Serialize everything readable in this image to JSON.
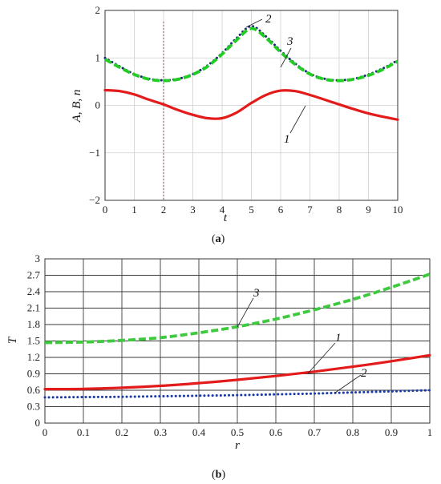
{
  "chart_data": [
    {
      "panel_label": "a",
      "type": "line",
      "xlabel": "t",
      "ylabel": "A, B, n",
      "xlim": [
        0,
        10
      ],
      "ylim": [
        -2,
        2
      ],
      "xticks": [
        "0",
        "1",
        "2",
        "3",
        "4",
        "5",
        "6",
        "7",
        "8",
        "9",
        "10"
      ],
      "yticks": [
        "2",
        "1",
        "0",
        "−1",
        "−2"
      ],
      "grid": true,
      "marker_line_x": 2,
      "series": [
        {
          "name": "1",
          "color": "#e31b1b",
          "style": "solid",
          "x": [
            0,
            0.5,
            1,
            1.5,
            2,
            2.5,
            3,
            3.5,
            4,
            4.5,
            5,
            5.5,
            6,
            6.5,
            7,
            7.5,
            8,
            8.5,
            9,
            9.5,
            10
          ],
          "y": [
            0.32,
            0.3,
            0.23,
            0.12,
            0.02,
            -0.1,
            -0.2,
            -0.27,
            -0.27,
            -0.15,
            0.05,
            0.22,
            0.31,
            0.3,
            0.22,
            0.12,
            0.02,
            -0.08,
            -0.17,
            -0.24,
            -0.3
          ]
        },
        {
          "name": "2",
          "color": "#1a237e",
          "style": "dotted",
          "x": [
            0,
            0.5,
            1,
            1.5,
            2,
            2.5,
            3,
            3.5,
            4,
            4.5,
            5,
            5.5,
            6,
            6.5,
            7,
            7.5,
            8,
            8.5,
            9,
            9.5,
            10
          ],
          "y": [
            1.0,
            0.82,
            0.66,
            0.56,
            0.53,
            0.56,
            0.66,
            0.84,
            1.1,
            1.42,
            1.67,
            1.45,
            1.15,
            0.88,
            0.67,
            0.56,
            0.53,
            0.56,
            0.65,
            0.78,
            0.95
          ]
        },
        {
          "name": "3",
          "color": "#22cc22",
          "style": "dashed",
          "x": [
            0,
            0.5,
            1,
            1.5,
            2,
            2.5,
            3,
            3.5,
            4,
            4.5,
            5,
            5.5,
            6,
            6.5,
            7,
            7.5,
            8,
            8.5,
            9,
            9.5,
            10
          ],
          "y": [
            0.97,
            0.8,
            0.65,
            0.55,
            0.52,
            0.55,
            0.65,
            0.82,
            1.08,
            1.38,
            1.62,
            1.42,
            1.12,
            0.86,
            0.66,
            0.55,
            0.52,
            0.55,
            0.63,
            0.76,
            0.93
          ]
        }
      ],
      "annotations": [
        "1",
        "2",
        "3"
      ]
    },
    {
      "panel_label": "b",
      "type": "line",
      "xlabel": "r",
      "ylabel": "T",
      "xlim": [
        0,
        1
      ],
      "ylim": [
        0,
        3
      ],
      "xticks": [
        "0",
        "0.1",
        "0.2",
        "0.3",
        "0.4",
        "0.5",
        "0.6",
        "0.7",
        "0.8",
        "0.9",
        "1"
      ],
      "yticks": [
        "3",
        "2.7",
        "2.4",
        "2.1",
        "1.8",
        "1.5",
        "1.2",
        "0.9",
        "0.6",
        "0.3",
        "0"
      ],
      "grid": true,
      "series": [
        {
          "name": "1",
          "color": "#e31b1b",
          "style": "solid",
          "x": [
            0,
            0.1,
            0.2,
            0.3,
            0.4,
            0.5,
            0.6,
            0.7,
            0.8,
            0.9,
            1.0
          ],
          "y": [
            0.62,
            0.625,
            0.645,
            0.68,
            0.73,
            0.79,
            0.86,
            0.94,
            1.03,
            1.13,
            1.24
          ]
        },
        {
          "name": "2",
          "color": "#1a3aa8",
          "style": "dotted",
          "x": [
            0,
            0.1,
            0.2,
            0.3,
            0.4,
            0.5,
            0.6,
            0.7,
            0.8,
            0.9,
            1.0
          ],
          "y": [
            0.47,
            0.475,
            0.48,
            0.49,
            0.5,
            0.51,
            0.525,
            0.54,
            0.56,
            0.58,
            0.6
          ]
        },
        {
          "name": "3",
          "color": "#3ec93e",
          "style": "dashed",
          "x": [
            0,
            0.1,
            0.2,
            0.3,
            0.4,
            0.5,
            0.6,
            0.7,
            0.8,
            0.9,
            1.0
          ],
          "y": [
            1.47,
            1.48,
            1.51,
            1.56,
            1.65,
            1.76,
            1.9,
            2.07,
            2.26,
            2.48,
            2.72
          ]
        }
      ],
      "annotations": [
        "1",
        "2",
        "3"
      ]
    }
  ]
}
